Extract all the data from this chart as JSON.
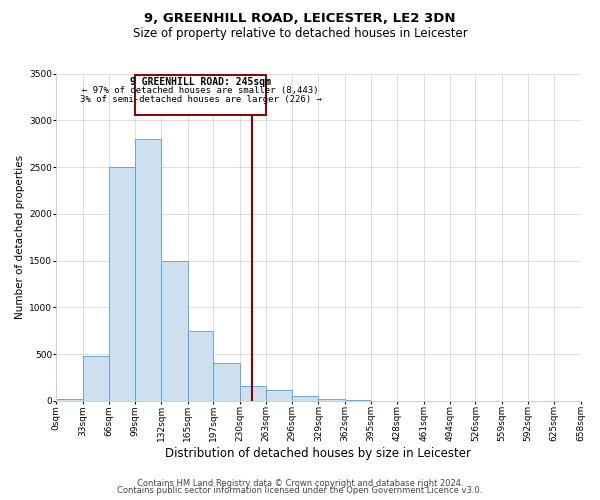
{
  "title": "9, GREENHILL ROAD, LEICESTER, LE2 3DN",
  "subtitle": "Size of property relative to detached houses in Leicester",
  "xlabel": "Distribution of detached houses by size in Leicester",
  "ylabel": "Number of detached properties",
  "bar_edges": [
    0,
    33,
    66,
    99,
    132,
    165,
    197,
    230,
    263,
    296,
    329,
    362,
    395,
    428,
    461,
    494,
    526,
    559,
    592,
    625,
    658
  ],
  "bar_heights": [
    20,
    480,
    2500,
    2800,
    1500,
    750,
    400,
    160,
    120,
    50,
    20,
    5,
    2,
    0,
    0,
    0,
    0,
    0,
    0,
    0
  ],
  "bar_facecolor": "#cce0f0",
  "bar_edgecolor": "#5b9bd5",
  "vline_x": 245,
  "vline_color": "#8b0000",
  "annotation_box_color": "#8b0000",
  "annotation_text_line1": "9 GREENHILL ROAD: 245sqm",
  "annotation_text_line2": "← 97% of detached houses are smaller (8,443)",
  "annotation_text_line3": "3% of semi-detached houses are larger (226) →",
  "tick_labels": [
    "0sqm",
    "33sqm",
    "66sqm",
    "99sqm",
    "132sqm",
    "165sqm",
    "197sqm",
    "230sqm",
    "263sqm",
    "296sqm",
    "329sqm",
    "362sqm",
    "395sqm",
    "428sqm",
    "461sqm",
    "494sqm",
    "526sqm",
    "559sqm",
    "592sqm",
    "625sqm",
    "658sqm"
  ],
  "ylim": [
    0,
    3500
  ],
  "yticks": [
    0,
    500,
    1000,
    1500,
    2000,
    2500,
    3000,
    3500
  ],
  "footer_line1": "Contains HM Land Registry data © Crown copyright and database right 2024.",
  "footer_line2": "Contains public sector information licensed under the Open Government Licence v3.0.",
  "bg_color": "#ffffff",
  "grid_color": "#d0d0d0",
  "title_fontsize": 9.5,
  "subtitle_fontsize": 8.5,
  "xlabel_fontsize": 8.5,
  "ylabel_fontsize": 7.5,
  "tick_fontsize": 6.5,
  "annot_fontsize1": 7.0,
  "annot_fontsize2": 6.5,
  "footer_fontsize": 6.0
}
